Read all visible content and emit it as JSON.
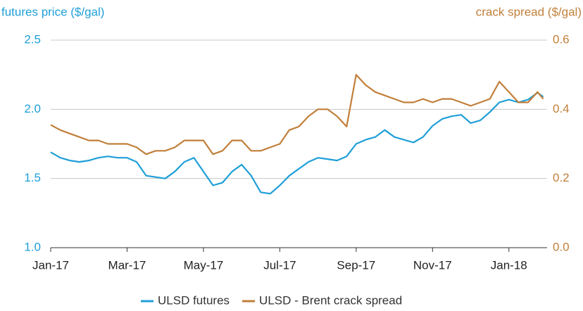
{
  "chart_data": {
    "type": "line",
    "y_label": "futures price ($/gal)",
    "y2_label": "crack spread ($/gal)",
    "x": [
      0,
      0.25,
      0.5,
      0.75,
      1,
      1.25,
      1.5,
      1.75,
      2,
      2.25,
      2.5,
      2.75,
      3,
      3.25,
      3.5,
      3.75,
      4,
      4.25,
      4.5,
      4.75,
      5,
      5.25,
      5.5,
      5.75,
      6,
      6.25,
      6.5,
      6.75,
      7,
      7.25,
      7.5,
      7.75,
      8,
      8.25,
      8.5,
      8.75,
      9,
      9.25,
      9.5,
      9.75,
      10,
      10.25,
      10.5,
      10.75,
      11,
      11.25,
      11.5,
      11.75,
      12,
      12.25,
      12.5,
      12.75,
      12.9
    ],
    "xlim": [
      0,
      13
    ],
    "xticks": [
      {
        "value": 0,
        "label": "Jan-17"
      },
      {
        "value": 2,
        "label": "Mar-17"
      },
      {
        "value": 4,
        "label": "May-17"
      },
      {
        "value": 6,
        "label": "Jul-17"
      },
      {
        "value": 8,
        "label": "Sep-17"
      },
      {
        "value": 10,
        "label": "Nov-17"
      },
      {
        "value": 12,
        "label": "Jan-18"
      }
    ],
    "ylim": [
      1.0,
      2.5
    ],
    "yticks": [
      {
        "value": 1.0,
        "label": "1.0"
      },
      1.5,
      {
        "value": 2.0,
        "label": "2.0"
      },
      2.5
    ],
    "y2lim": [
      0,
      0.6
    ],
    "y2ticks": [
      {
        "value": 0,
        "label": "0.0"
      },
      0.2,
      0.4,
      0.6
    ],
    "grid": true,
    "legend": "bottom",
    "series": [
      {
        "name": "ULSD futures",
        "color": "#1f9fd8",
        "values": [
          1.69,
          1.65,
          1.63,
          1.62,
          1.63,
          1.65,
          1.66,
          1.65,
          1.65,
          1.62,
          1.52,
          1.51,
          1.5,
          1.55,
          1.62,
          1.65,
          1.55,
          1.45,
          1.47,
          1.55,
          1.6,
          1.52,
          1.4,
          1.39,
          1.45,
          1.52,
          1.57,
          1.62,
          1.65,
          1.64,
          1.63,
          1.66,
          1.75,
          1.78,
          1.8,
          1.85,
          1.8,
          1.78,
          1.76,
          1.8,
          1.88,
          1.93,
          1.95,
          1.96,
          1.9,
          1.92,
          1.98,
          2.05,
          2.07,
          2.05,
          2.07,
          2.12,
          2.09
        ]
      },
      {
        "name": "ULSD - Brent crack spread",
        "color": "#c17f3a",
        "axis": "y2",
        "values": [
          0.355,
          0.34,
          0.33,
          0.32,
          0.31,
          0.31,
          0.3,
          0.3,
          0.3,
          0.29,
          0.27,
          0.28,
          0.28,
          0.29,
          0.31,
          0.31,
          0.31,
          0.27,
          0.28,
          0.31,
          0.31,
          0.28,
          0.28,
          0.29,
          0.3,
          0.34,
          0.35,
          0.38,
          0.4,
          0.4,
          0.38,
          0.35,
          0.5,
          0.47,
          0.45,
          0.44,
          0.43,
          0.42,
          0.42,
          0.43,
          0.42,
          0.43,
          0.43,
          0.42,
          0.41,
          0.42,
          0.43,
          0.48,
          0.45,
          0.42,
          0.42,
          0.45,
          0.43
        ]
      }
    ]
  }
}
